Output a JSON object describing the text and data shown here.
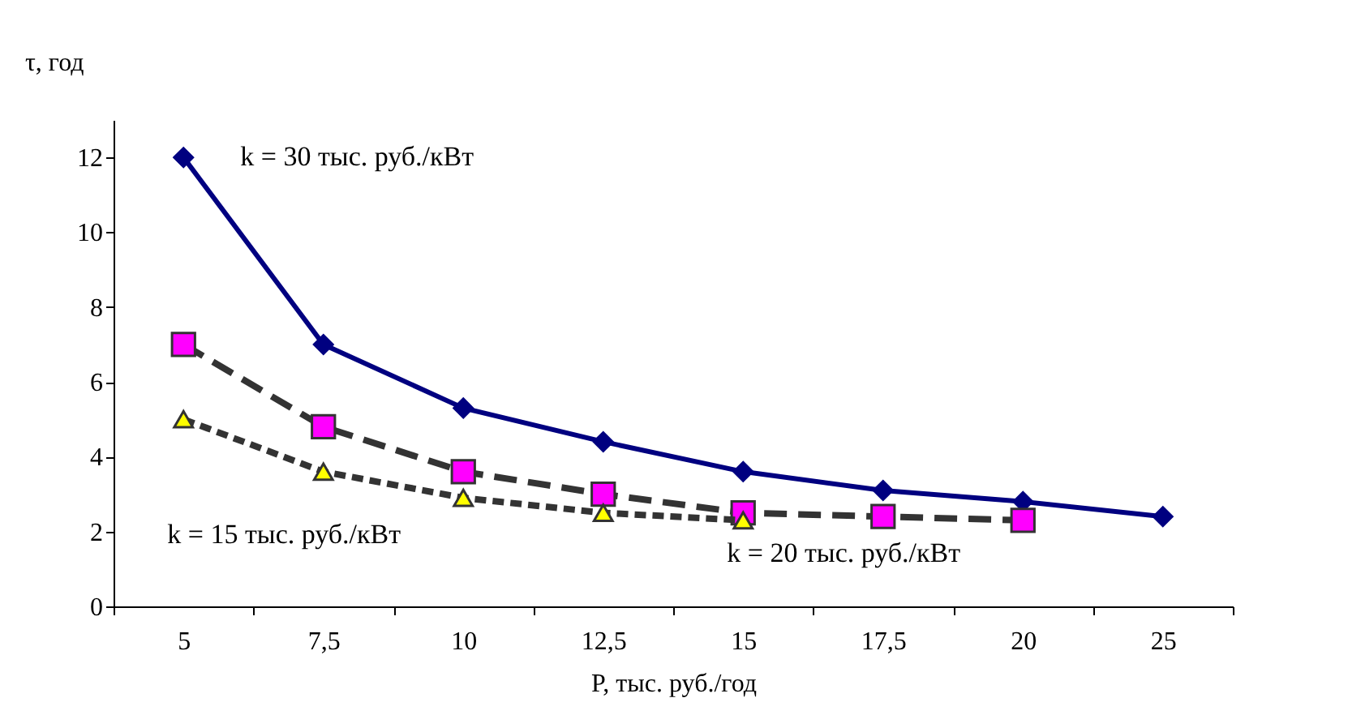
{
  "chart_data": {
    "type": "line",
    "xlabel": "P, тыс. руб./год",
    "ylabel": "τ, год",
    "categories": [
      "5",
      "7,5",
      "10",
      "12,5",
      "15",
      "17,5",
      "20",
      "25"
    ],
    "ylim": [
      0,
      13
    ],
    "yticks": [
      0,
      2,
      4,
      6,
      8,
      10,
      12
    ],
    "grid": false,
    "legend": false,
    "series": [
      {
        "name": "k = 30 тыс. руб./кВт",
        "color": "#000080",
        "marker": "diamond",
        "line_style": "solid",
        "values": [
          12,
          7,
          5.3,
          4.4,
          3.6,
          3.1,
          2.8,
          2.4
        ]
      },
      {
        "name": "k = 20 тыс. руб./кВт",
        "color": "#ff00ff",
        "marker": "square",
        "line_style": "dashed",
        "values": [
          7,
          4.8,
          3.6,
          3.0,
          2.5,
          2.4,
          2.3,
          null
        ]
      },
      {
        "name": "k = 15 тыс. руб./кВт",
        "color": "#ffff00",
        "marker": "triangle",
        "line_style": "dotted",
        "values": [
          5,
          3.6,
          2.9,
          2.5,
          2.3,
          null,
          null,
          null
        ]
      }
    ]
  }
}
